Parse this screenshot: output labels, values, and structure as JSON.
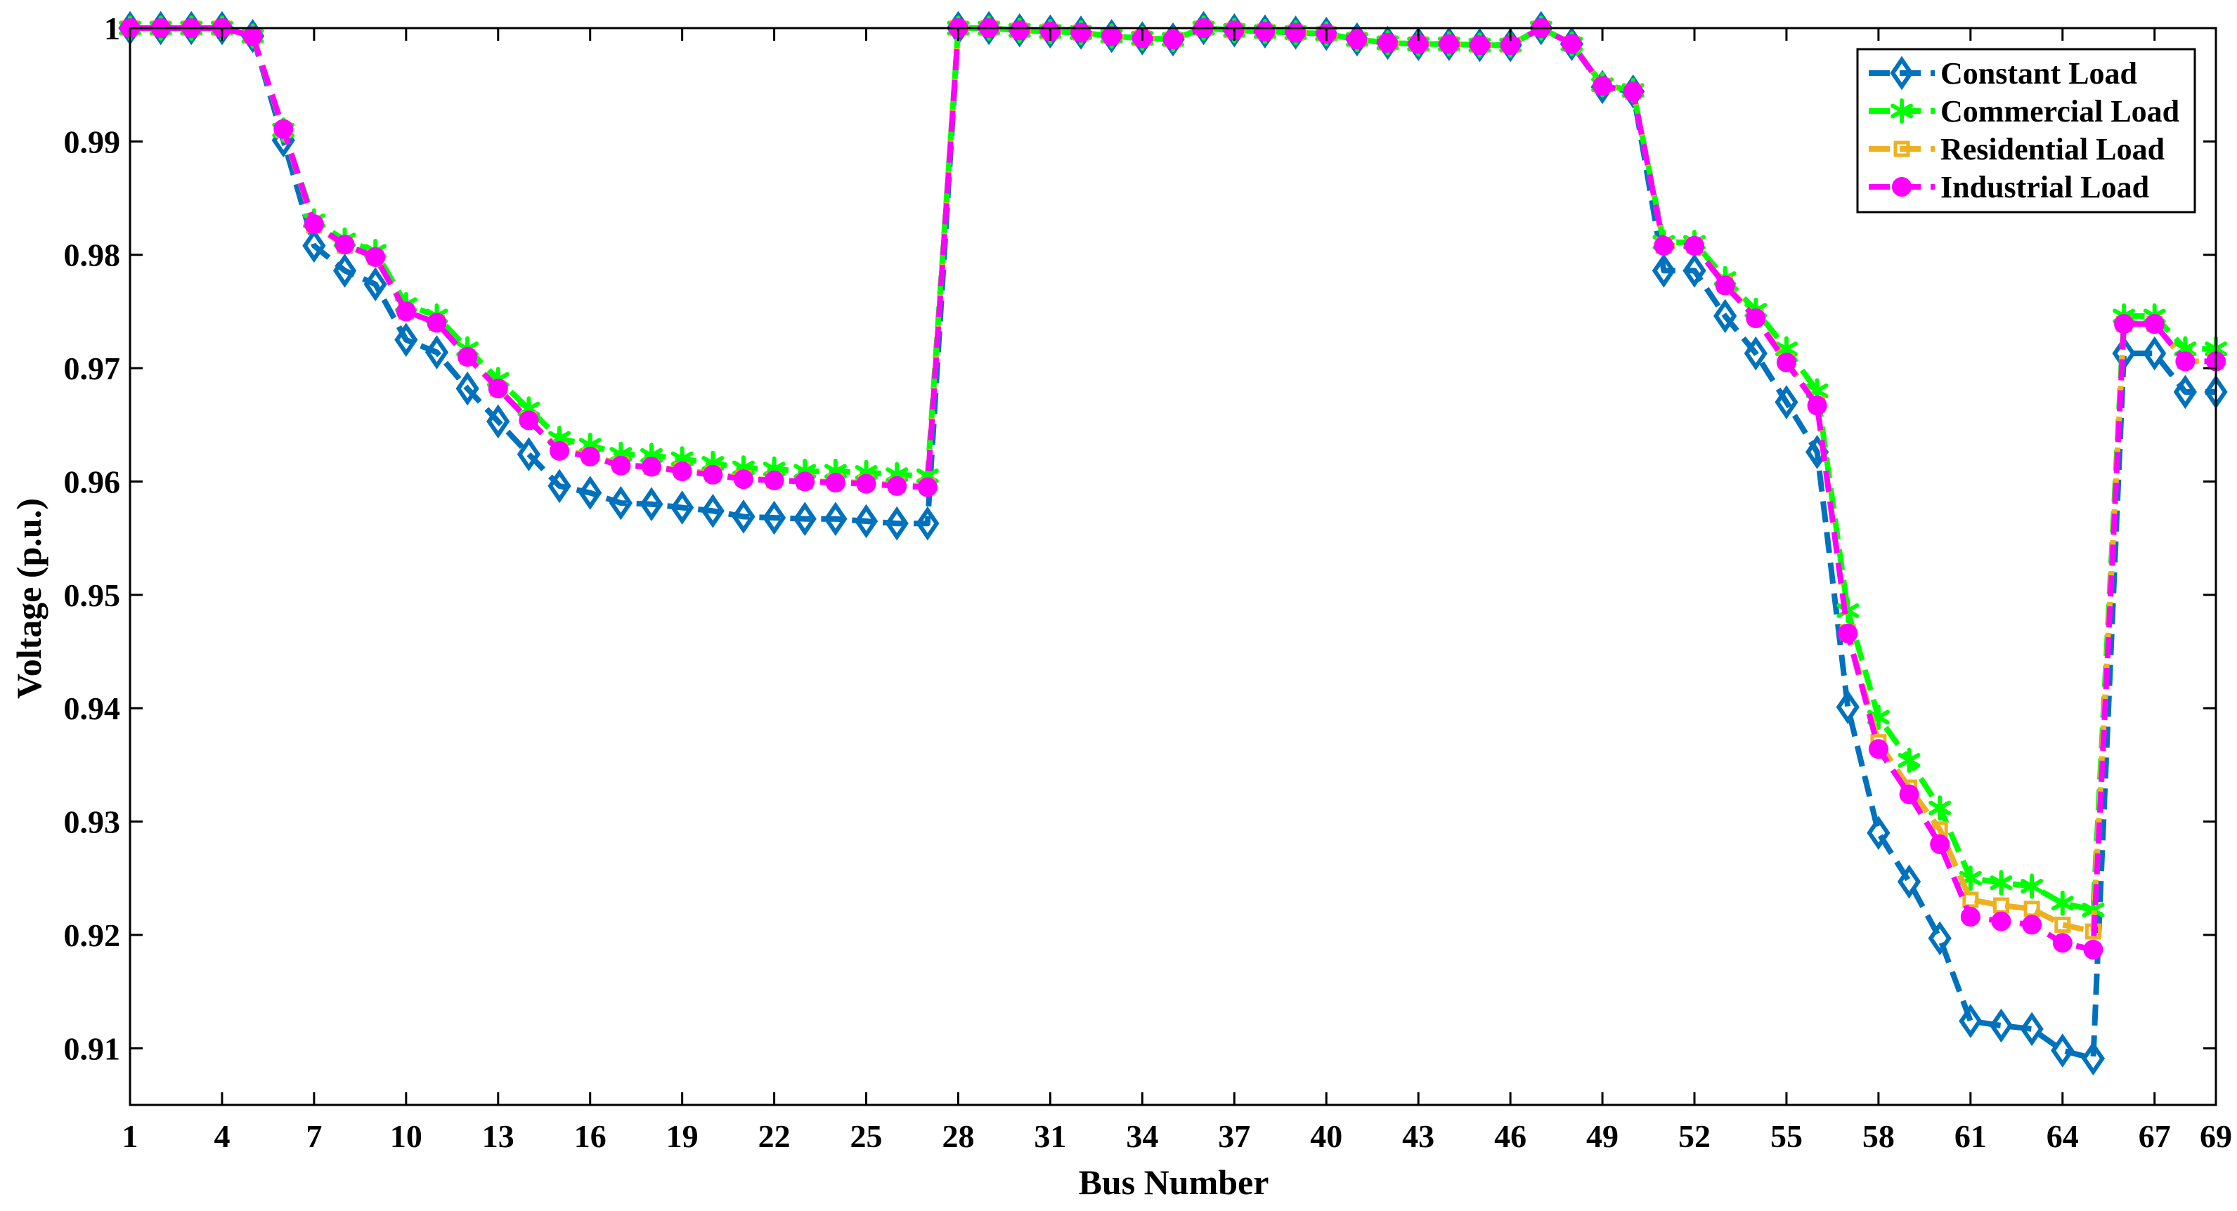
{
  "chart_data": {
    "type": "line",
    "title": "",
    "xlabel": "Bus Number",
    "ylabel": "Voltage (p.u.)",
    "xlim": [
      1,
      69
    ],
    "ylim": [
      0.905,
      1.0
    ],
    "x_ticks": [
      1,
      4,
      7,
      10,
      13,
      16,
      19,
      22,
      25,
      28,
      31,
      34,
      37,
      40,
      43,
      46,
      49,
      52,
      55,
      58,
      61,
      64,
      67,
      69
    ],
    "y_ticks": [
      0.91,
      0.92,
      0.93,
      0.94,
      0.95,
      0.96,
      0.97,
      0.98,
      0.99,
      1
    ],
    "y_tick_labels": [
      "0.91",
      "0.92",
      "0.93",
      "0.94",
      "0.95",
      "0.96",
      "0.97",
      "0.98",
      "0.99",
      "1"
    ],
    "grid": false,
    "legend_position": "top-right",
    "x": [
      1,
      2,
      3,
      4,
      5,
      6,
      7,
      8,
      9,
      10,
      11,
      12,
      13,
      14,
      15,
      16,
      17,
      18,
      19,
      20,
      21,
      22,
      23,
      24,
      25,
      26,
      27,
      28,
      29,
      30,
      31,
      32,
      33,
      34,
      35,
      36,
      37,
      38,
      39,
      40,
      41,
      42,
      43,
      44,
      45,
      46,
      47,
      48,
      49,
      50,
      51,
      52,
      53,
      54,
      55,
      56,
      57,
      58,
      59,
      60,
      61,
      62,
      63,
      64,
      65,
      66,
      67,
      68,
      69
    ],
    "series": [
      {
        "name": "Constant Load",
        "color": "#0072BD",
        "marker": "diamond",
        "values": [
          1.0,
          1.0,
          1.0,
          1.0,
          0.9993,
          0.9901,
          0.9808,
          0.9786,
          0.9774,
          0.9725,
          0.9714,
          0.9682,
          0.9653,
          0.9624,
          0.9596,
          0.959,
          0.9581,
          0.958,
          0.9577,
          0.9574,
          0.9569,
          0.9568,
          0.9567,
          0.9567,
          0.9565,
          0.9563,
          0.9563,
          1.0,
          1.0,
          0.9998,
          0.9997,
          0.9996,
          0.9993,
          0.9991,
          0.999,
          1.0,
          0.9998,
          0.9997,
          0.9996,
          0.9995,
          0.999,
          0.9987,
          0.9986,
          0.9986,
          0.9985,
          0.9985,
          1.0,
          0.9986,
          0.9948,
          0.9944,
          0.9786,
          0.9786,
          0.9746,
          0.9713,
          0.967,
          0.9626,
          0.9401,
          0.929,
          0.9247,
          0.9197,
          0.9124,
          0.912,
          0.9117,
          0.9098,
          0.9091,
          0.9713,
          0.9713,
          0.9679,
          0.9679
        ]
      },
      {
        "name": "Commercial Load",
        "color": "#00FF00",
        "marker": "star",
        "values": [
          1.0,
          1.0,
          1.0,
          1.0,
          0.9993,
          0.991,
          0.983,
          0.9813,
          0.9803,
          0.9756,
          0.9746,
          0.9717,
          0.969,
          0.9664,
          0.9638,
          0.9632,
          0.9624,
          0.9623,
          0.962,
          0.9616,
          0.9612,
          0.9611,
          0.9609,
          0.9609,
          0.9608,
          0.9606,
          0.9605,
          1.0,
          1.0,
          0.9998,
          0.9997,
          0.9996,
          0.9993,
          0.9991,
          0.999,
          1.0,
          0.9998,
          0.9997,
          0.9996,
          0.9995,
          0.999,
          0.9987,
          0.9986,
          0.9986,
          0.9985,
          0.9985,
          1.0,
          0.9986,
          0.995,
          0.9945,
          0.9811,
          0.9811,
          0.9779,
          0.9751,
          0.9717,
          0.968,
          0.9486,
          0.9392,
          0.9354,
          0.9312,
          0.925,
          0.9246,
          0.9243,
          0.9228,
          0.9222,
          0.9746,
          0.9746,
          0.9717,
          0.9717
        ]
      },
      {
        "name": "Residential Load",
        "color": "#EDB120",
        "marker": "square",
        "values": [
          1.0,
          1.0,
          1.0,
          1.0,
          0.9993,
          0.991,
          0.9826,
          0.9808,
          0.9798,
          0.975,
          0.974,
          0.971,
          0.9682,
          0.9655,
          0.9628,
          0.9623,
          0.9615,
          0.9613,
          0.961,
          0.9607,
          0.9603,
          0.9601,
          0.96,
          0.96,
          0.9599,
          0.9597,
          0.9596,
          1.0,
          1.0,
          0.9998,
          0.9997,
          0.9996,
          0.9993,
          0.9991,
          0.999,
          1.0,
          0.9998,
          0.9997,
          0.9996,
          0.9995,
          0.999,
          0.9987,
          0.9986,
          0.9986,
          0.9985,
          0.9985,
          1.0,
          0.9986,
          0.9949,
          0.9944,
          0.9808,
          0.9808,
          0.9774,
          0.9745,
          0.9706,
          0.9668,
          0.9467,
          0.937,
          0.933,
          0.9293,
          0.9231,
          0.9226,
          0.9223,
          0.9209,
          0.9203,
          0.9739,
          0.9739,
          0.9706,
          0.9706
        ]
      },
      {
        "name": "Industrial Load",
        "color": "#FF00FF",
        "marker": "circle",
        "values": [
          1.0,
          1.0,
          1.0,
          1.0,
          0.9993,
          0.9911,
          0.9827,
          0.9809,
          0.9798,
          0.975,
          0.974,
          0.971,
          0.9682,
          0.9654,
          0.9627,
          0.9622,
          0.9614,
          0.9613,
          0.9609,
          0.9606,
          0.9602,
          0.9601,
          0.96,
          0.9599,
          0.9598,
          0.9596,
          0.9595,
          1.0,
          1.0,
          0.9998,
          0.9997,
          0.9996,
          0.9993,
          0.9991,
          0.999,
          1.0,
          0.9998,
          0.9997,
          0.9996,
          0.9995,
          0.999,
          0.9987,
          0.9986,
          0.9986,
          0.9985,
          0.9985,
          1.0,
          0.9986,
          0.9949,
          0.9944,
          0.9808,
          0.9808,
          0.9773,
          0.9744,
          0.9705,
          0.9667,
          0.9466,
          0.9364,
          0.9324,
          0.928,
          0.9216,
          0.9212,
          0.9209,
          0.9193,
          0.9187,
          0.9739,
          0.9739,
          0.9706,
          0.9706
        ]
      }
    ]
  }
}
